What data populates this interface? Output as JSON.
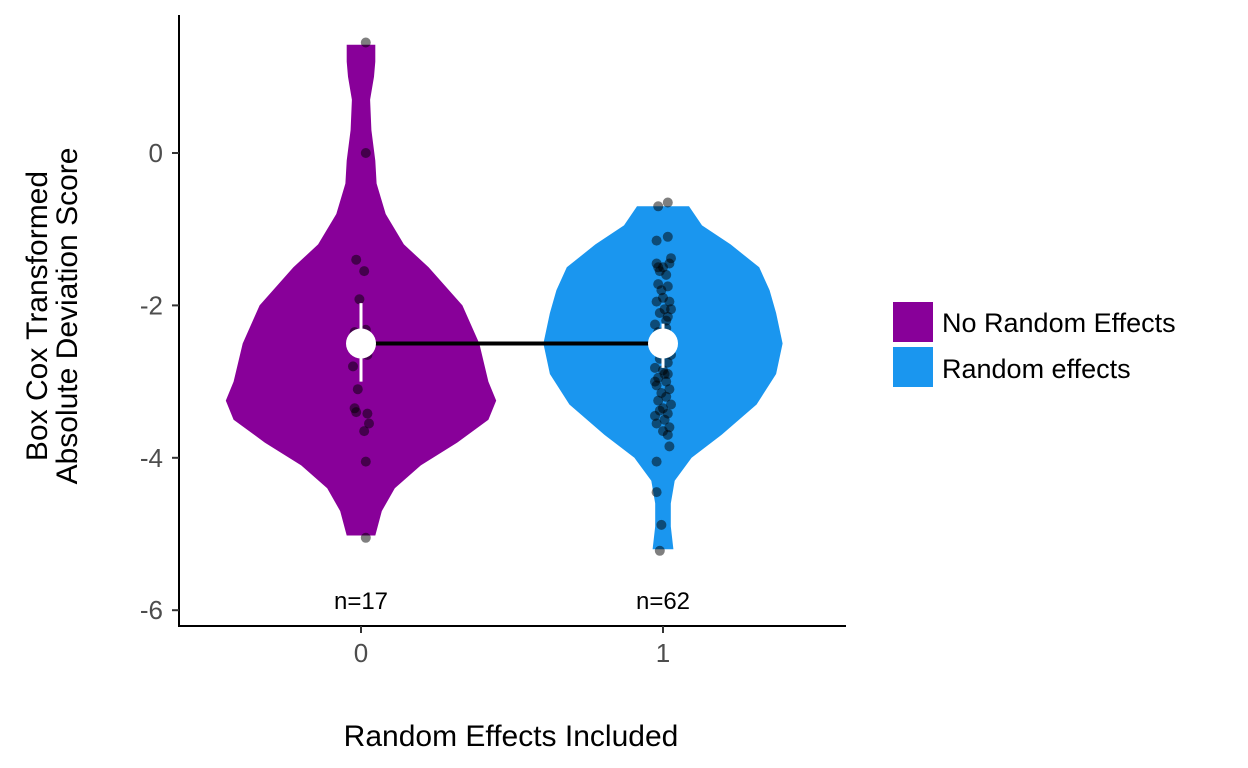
{
  "chart_data": {
    "type": "violin",
    "title": "",
    "xlabel": "Random Effects Included",
    "ylabel_lines": [
      "Box Cox Transformed",
      "Absolute Deviation Score"
    ],
    "ylim": [
      -6.1,
      1.8
    ],
    "yticks": [
      -6,
      -4,
      -2,
      0
    ],
    "ytick_labels": [
      "-6",
      "-4",
      "-2",
      "0"
    ],
    "categories": [
      "0",
      "1"
    ],
    "grid": false,
    "legend": {
      "position": "right",
      "entries": [
        {
          "label": "No Random Effects",
          "color": "#880099"
        },
        {
          "label": "Random effects",
          "color": "#1a96ef"
        }
      ]
    },
    "series": [
      {
        "name": "No Random Effects",
        "category": "0",
        "color": "#880099",
        "n_label": "n=17",
        "mean": -2.5,
        "ci": [
          -3.0,
          -1.97
        ],
        "violin_profile": [
          [
            -5.02,
            0.11
          ],
          [
            -4.7,
            0.16
          ],
          [
            -4.4,
            0.26
          ],
          [
            -4.1,
            0.46
          ],
          [
            -3.8,
            0.74
          ],
          [
            -3.5,
            0.98
          ],
          [
            -3.25,
            1.04
          ],
          [
            -3.0,
            0.98
          ],
          [
            -2.5,
            0.91
          ],
          [
            -2.0,
            0.78
          ],
          [
            -1.5,
            0.52
          ],
          [
            -1.2,
            0.33
          ],
          [
            -0.8,
            0.19
          ],
          [
            -0.4,
            0.12
          ],
          [
            -0.1,
            0.11
          ],
          [
            0.3,
            0.08
          ],
          [
            0.7,
            0.07
          ],
          [
            1.0,
            0.1
          ],
          [
            1.2,
            0.11
          ],
          [
            1.42,
            0.11
          ]
        ],
        "points": [
          {
            "x": 0.03,
            "y": 1.45
          },
          {
            "x": 0.03,
            "y": 0.0
          },
          {
            "x": -0.03,
            "y": -1.4
          },
          {
            "x": 0.02,
            "y": -1.55
          },
          {
            "x": -0.01,
            "y": -1.92
          },
          {
            "x": -0.04,
            "y": -2.35
          },
          {
            "x": 0.03,
            "y": -2.32
          },
          {
            "x": 0.04,
            "y": -2.65
          },
          {
            "x": -0.05,
            "y": -2.8
          },
          {
            "x": -0.02,
            "y": -3.1
          },
          {
            "x": -0.04,
            "y": -3.35
          },
          {
            "x": -0.03,
            "y": -3.4
          },
          {
            "x": 0.04,
            "y": -3.42
          },
          {
            "x": 0.05,
            "y": -3.55
          },
          {
            "x": 0.02,
            "y": -3.65
          },
          {
            "x": 0.03,
            "y": -4.05
          },
          {
            "x": 0.03,
            "y": -5.05
          }
        ]
      },
      {
        "name": "Random effects",
        "category": "1",
        "color": "#1a96ef",
        "n_label": "n=62",
        "mean": -2.5,
        "ci": [
          -2.82,
          -2.24
        ],
        "violin_profile": [
          [
            -5.2,
            0.08
          ],
          [
            -4.9,
            0.06
          ],
          [
            -4.6,
            0.06
          ],
          [
            -4.3,
            0.09
          ],
          [
            -4.0,
            0.22
          ],
          [
            -3.7,
            0.45
          ],
          [
            -3.3,
            0.72
          ],
          [
            -2.9,
            0.87
          ],
          [
            -2.5,
            0.92
          ],
          [
            -2.1,
            0.87
          ],
          [
            -1.8,
            0.82
          ],
          [
            -1.5,
            0.74
          ],
          [
            -1.2,
            0.52
          ],
          [
            -0.95,
            0.3
          ],
          [
            -0.7,
            0.2
          ]
        ],
        "points": [
          {
            "x": -0.03,
            "y": -0.7
          },
          {
            "x": 0.03,
            "y": -0.65
          },
          {
            "x": -0.04,
            "y": -1.15
          },
          {
            "x": 0.03,
            "y": -1.1
          },
          {
            "x": 0.05,
            "y": -1.38
          },
          {
            "x": -0.04,
            "y": -1.45
          },
          {
            "x": 0.04,
            "y": -1.45
          },
          {
            "x": 0.0,
            "y": -1.5
          },
          {
            "x": -0.02,
            "y": -1.55
          },
          {
            "x": 0.02,
            "y": -1.6
          },
          {
            "x": -0.03,
            "y": -1.72
          },
          {
            "x": 0.03,
            "y": -1.75
          },
          {
            "x": 0.0,
            "y": -1.9
          },
          {
            "x": -0.04,
            "y": -1.95
          },
          {
            "x": 0.04,
            "y": -1.95
          },
          {
            "x": 0.01,
            "y": -2.05
          },
          {
            "x": -0.02,
            "y": -2.1
          },
          {
            "x": 0.03,
            "y": -2.15
          },
          {
            "x": -0.05,
            "y": -2.25
          },
          {
            "x": 0.02,
            "y": -2.3
          },
          {
            "x": -0.01,
            "y": -2.38
          },
          {
            "x": 0.04,
            "y": -2.45
          },
          {
            "x": -0.03,
            "y": -2.5
          },
          {
            "x": 0.01,
            "y": -2.55
          },
          {
            "x": -0.04,
            "y": -2.6
          },
          {
            "x": 0.05,
            "y": -2.65
          },
          {
            "x": -0.02,
            "y": -2.7
          },
          {
            "x": 0.03,
            "y": -2.75
          },
          {
            "x": -0.05,
            "y": -2.82
          },
          {
            "x": 0.0,
            "y": -2.85
          },
          {
            "x": 0.03,
            "y": -2.9
          },
          {
            "x": -0.03,
            "y": -2.95
          },
          {
            "x": 0.02,
            "y": -3.0
          },
          {
            "x": -0.04,
            "y": -3.05
          },
          {
            "x": 0.04,
            "y": -3.1
          },
          {
            "x": -0.01,
            "y": -3.15
          },
          {
            "x": 0.02,
            "y": -3.2
          },
          {
            "x": -0.03,
            "y": -3.25
          },
          {
            "x": 0.05,
            "y": -3.3
          },
          {
            "x": 0.0,
            "y": -3.35
          },
          {
            "x": -0.02,
            "y": -3.38
          },
          {
            "x": 0.03,
            "y": -3.42
          },
          {
            "x": -0.05,
            "y": -3.45
          },
          {
            "x": 0.01,
            "y": -3.5
          },
          {
            "x": -0.04,
            "y": -3.55
          },
          {
            "x": 0.04,
            "y": -3.6
          },
          {
            "x": 0.0,
            "y": -3.65
          },
          {
            "x": -0.03,
            "y": -2.35
          },
          {
            "x": 0.02,
            "y": -2.4
          },
          {
            "x": -0.01,
            "y": -1.8
          },
          {
            "x": 0.05,
            "y": -2.05
          },
          {
            "x": -0.05,
            "y": -3.0
          },
          {
            "x": 0.04,
            "y": -3.85
          },
          {
            "x": -0.04,
            "y": -4.05
          },
          {
            "x": -0.04,
            "y": -4.45
          },
          {
            "x": -0.01,
            "y": -4.88
          },
          {
            "x": -0.02,
            "y": -5.22
          },
          {
            "x": 0.02,
            "y": -2.2
          },
          {
            "x": -0.02,
            "y": -2.62
          },
          {
            "x": 0.03,
            "y": -3.7
          },
          {
            "x": -0.03,
            "y": -1.5
          },
          {
            "x": 0.01,
            "y": -2.9
          }
        ]
      }
    ],
    "mean_line": {
      "from_category": "0",
      "to_category": "1",
      "color": "#000000"
    }
  }
}
